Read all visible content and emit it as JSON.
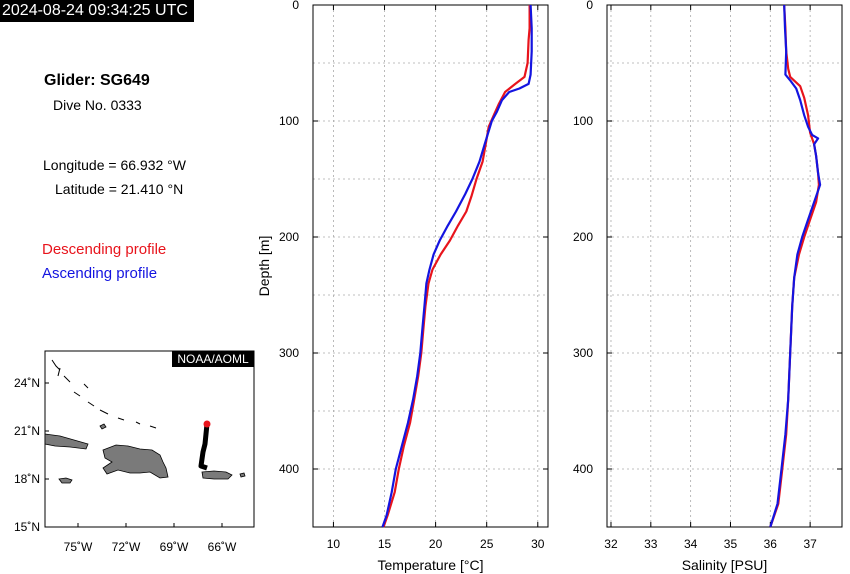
{
  "header": {
    "timestamp": "2024-08-24 09:34:25 UTC",
    "glider": "Glider: SG649",
    "dive": "Dive No. 0333",
    "longitude": "Longitude = 66.932 °W",
    "latitude": "Latitude = 21.410 °N"
  },
  "legend": {
    "descending": "Descending profile",
    "ascending": "Ascending profile",
    "descending_color": "#e8141c",
    "ascending_color": "#1414e0"
  },
  "map": {
    "credit": "NOAA/AOML",
    "lat_ticks": [
      "24˚N",
      "21˚N",
      "18˚N",
      "15˚N"
    ],
    "lon_ticks": [
      "75˚W",
      "72˚W",
      "69˚W",
      "66˚W"
    ],
    "track_color": "#000000",
    "position_color": "#e8141c"
  },
  "chart_data": [
    {
      "type": "line",
      "xlabel": "Temperature [°C]",
      "ylabel": "Depth [m]",
      "xlim": [
        8,
        31
      ],
      "ylim": [
        0,
        450
      ],
      "y_inverted": true,
      "xticks": [
        "10",
        "15",
        "20",
        "25",
        "30"
      ],
      "yticks": [
        "0",
        "100",
        "200",
        "300",
        "400"
      ],
      "grid": true,
      "series": [
        {
          "name": "Descending profile",
          "color": "#e8141c",
          "points": [
            [
              29.2,
              0
            ],
            [
              29.2,
              20
            ],
            [
              29.1,
              30
            ],
            [
              29.0,
              50
            ],
            [
              28.7,
              62
            ],
            [
              27.8,
              68
            ],
            [
              26.8,
              75
            ],
            [
              26.2,
              85
            ],
            [
              25.7,
              95
            ],
            [
              25.2,
              105
            ],
            [
              24.9,
              120
            ],
            [
              24.6,
              135
            ],
            [
              24.0,
              150
            ],
            [
              23.5,
              165
            ],
            [
              23.0,
              178
            ],
            [
              22.2,
              190
            ],
            [
              21.4,
              203
            ],
            [
              20.5,
              215
            ],
            [
              19.7,
              228
            ],
            [
              19.3,
              240
            ],
            [
              19.0,
              260
            ],
            [
              18.8,
              280
            ],
            [
              18.6,
              300
            ],
            [
              18.3,
              320
            ],
            [
              17.9,
              340
            ],
            [
              17.5,
              360
            ],
            [
              16.9,
              380
            ],
            [
              16.4,
              400
            ],
            [
              16.0,
              420
            ],
            [
              15.3,
              440
            ],
            [
              14.9,
              450
            ]
          ]
        },
        {
          "name": "Ascending profile",
          "color": "#1414e0",
          "points": [
            [
              29.3,
              0
            ],
            [
              29.4,
              20
            ],
            [
              29.4,
              40
            ],
            [
              29.3,
              60
            ],
            [
              29.1,
              68
            ],
            [
              28.2,
              72
            ],
            [
              27.2,
              75
            ],
            [
              26.5,
              82
            ],
            [
              26.0,
              92
            ],
            [
              25.5,
              100
            ],
            [
              24.8,
              120
            ],
            [
              24.3,
              135
            ],
            [
              23.6,
              150
            ],
            [
              22.9,
              163
            ],
            [
              22.0,
              178
            ],
            [
              21.2,
              190
            ],
            [
              20.4,
              203
            ],
            [
              19.8,
              215
            ],
            [
              19.4,
              228
            ],
            [
              19.1,
              240
            ],
            [
              18.9,
              260
            ],
            [
              18.7,
              280
            ],
            [
              18.5,
              300
            ],
            [
              18.2,
              320
            ],
            [
              17.8,
              340
            ],
            [
              17.3,
              360
            ],
            [
              16.7,
              380
            ],
            [
              16.1,
              400
            ],
            [
              15.7,
              420
            ],
            [
              15.2,
              440
            ],
            [
              14.8,
              450
            ]
          ]
        }
      ]
    },
    {
      "type": "line",
      "xlabel": "Salinity [PSU]",
      "ylabel": "",
      "xlim": [
        31.9,
        37.8
      ],
      "ylim": [
        0,
        450
      ],
      "y_inverted": true,
      "xticks": [
        "32",
        "33",
        "34",
        "35",
        "36",
        "37"
      ],
      "yticks": [
        "0",
        "100",
        "200",
        "300",
        "400"
      ],
      "grid": true,
      "series": [
        {
          "name": "Descending profile",
          "color": "#e8141c",
          "points": [
            [
              36.35,
              0
            ],
            [
              36.38,
              20
            ],
            [
              36.4,
              40
            ],
            [
              36.45,
              55
            ],
            [
              36.5,
              62
            ],
            [
              36.75,
              70
            ],
            [
              36.85,
              80
            ],
            [
              36.95,
              95
            ],
            [
              37.0,
              110
            ],
            [
              37.1,
              120
            ],
            [
              37.15,
              130
            ],
            [
              37.2,
              145
            ],
            [
              37.22,
              155
            ],
            [
              37.15,
              170
            ],
            [
              37.0,
              185
            ],
            [
              36.85,
              200
            ],
            [
              36.72,
              215
            ],
            [
              36.6,
              235
            ],
            [
              36.55,
              260
            ],
            [
              36.5,
              300
            ],
            [
              36.45,
              340
            ],
            [
              36.4,
              370
            ],
            [
              36.3,
              400
            ],
            [
              36.2,
              430
            ],
            [
              36.0,
              450
            ]
          ]
        },
        {
          "name": "Ascending profile",
          "color": "#1414e0",
          "points": [
            [
              36.35,
              0
            ],
            [
              36.37,
              20
            ],
            [
              36.4,
              40
            ],
            [
              36.38,
              60
            ],
            [
              36.5,
              65
            ],
            [
              36.65,
              72
            ],
            [
              36.75,
              82
            ],
            [
              36.85,
              95
            ],
            [
              36.95,
              105
            ],
            [
              37.05,
              112
            ],
            [
              37.2,
              115
            ],
            [
              37.1,
              120
            ],
            [
              37.15,
              130
            ],
            [
              37.2,
              145
            ],
            [
              37.25,
              155
            ],
            [
              37.1,
              170
            ],
            [
              36.95,
              185
            ],
            [
              36.8,
              200
            ],
            [
              36.68,
              215
            ],
            [
              36.6,
              235
            ],
            [
              36.55,
              260
            ],
            [
              36.5,
              300
            ],
            [
              36.45,
              340
            ],
            [
              36.38,
              370
            ],
            [
              36.28,
              400
            ],
            [
              36.18,
              430
            ],
            [
              36.0,
              450
            ]
          ]
        }
      ]
    }
  ]
}
